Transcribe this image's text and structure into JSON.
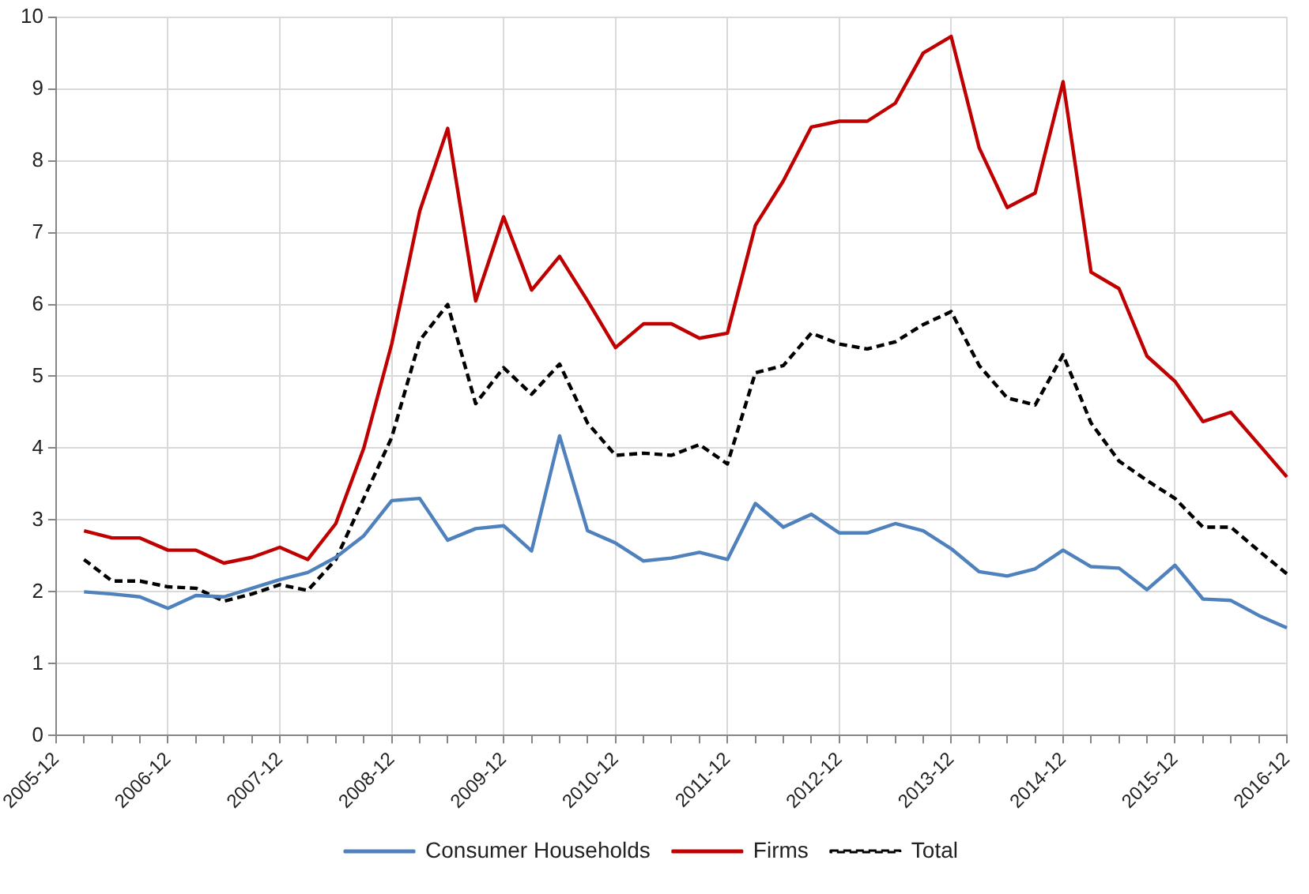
{
  "chart_data": {
    "type": "line",
    "categories": [
      "2005-12",
      null,
      null,
      null,
      "2006-12",
      null,
      null,
      null,
      "2007-12",
      null,
      null,
      null,
      "2008-12",
      null,
      null,
      null,
      "2009-12",
      null,
      null,
      null,
      "2010-12",
      null,
      null,
      null,
      "2011-12",
      null,
      null,
      null,
      "2012-12",
      null,
      null,
      null,
      "2013-12",
      null,
      null,
      null,
      "2014-12",
      null,
      null,
      null,
      "2015-12",
      null,
      null,
      null,
      "2016-12"
    ],
    "series": [
      {
        "name": "Consumer Households",
        "color": "#4f81bd",
        "line_style": "solid",
        "values": [
          null,
          2.0,
          1.97,
          1.93,
          1.77,
          1.95,
          1.93,
          2.05,
          2.17,
          2.27,
          2.48,
          2.78,
          3.27,
          3.3,
          2.72,
          2.88,
          2.92,
          2.57,
          4.17,
          2.85,
          2.68,
          2.43,
          2.47,
          2.55,
          2.45,
          3.23,
          2.9,
          3.08,
          2.82,
          2.82,
          2.95,
          2.85,
          2.6,
          2.28,
          2.22,
          2.32,
          2.58,
          2.35,
          2.33,
          2.03,
          2.37,
          1.9,
          1.88,
          1.67,
          1.5
        ]
      },
      {
        "name": "Firms",
        "color": "#c00000",
        "line_style": "solid",
        "values": [
          null,
          2.85,
          2.75,
          2.75,
          2.58,
          2.58,
          2.4,
          2.48,
          2.62,
          2.45,
          2.95,
          4.0,
          5.45,
          7.3,
          8.45,
          6.05,
          7.22,
          6.2,
          6.67,
          6.05,
          5.4,
          5.73,
          5.73,
          5.53,
          5.6,
          7.1,
          7.72,
          8.47,
          8.55,
          8.55,
          8.8,
          9.5,
          9.73,
          8.18,
          7.35,
          7.55,
          9.1,
          6.45,
          6.22,
          5.28,
          4.93,
          4.37,
          4.5,
          4.05,
          3.6
        ]
      },
      {
        "name": "Total",
        "color": "#000000",
        "line_style": "dashed",
        "values": [
          null,
          2.45,
          2.15,
          2.15,
          2.07,
          2.05,
          1.87,
          1.97,
          2.1,
          2.02,
          2.45,
          3.3,
          4.15,
          5.5,
          6.0,
          4.62,
          5.12,
          4.75,
          5.17,
          4.35,
          3.9,
          3.93,
          3.9,
          4.05,
          3.78,
          5.05,
          5.15,
          5.6,
          5.45,
          5.38,
          5.48,
          5.72,
          5.9,
          5.15,
          4.7,
          4.6,
          5.3,
          4.35,
          3.82,
          3.55,
          3.3,
          2.9,
          2.9,
          2.57,
          2.25
        ]
      }
    ],
    "ylim": [
      0,
      10
    ],
    "yticks": [
      0,
      1,
      2,
      3,
      4,
      5,
      6,
      7,
      8,
      9,
      10
    ],
    "grid": true,
    "legend": "bottom",
    "marker": "none"
  }
}
